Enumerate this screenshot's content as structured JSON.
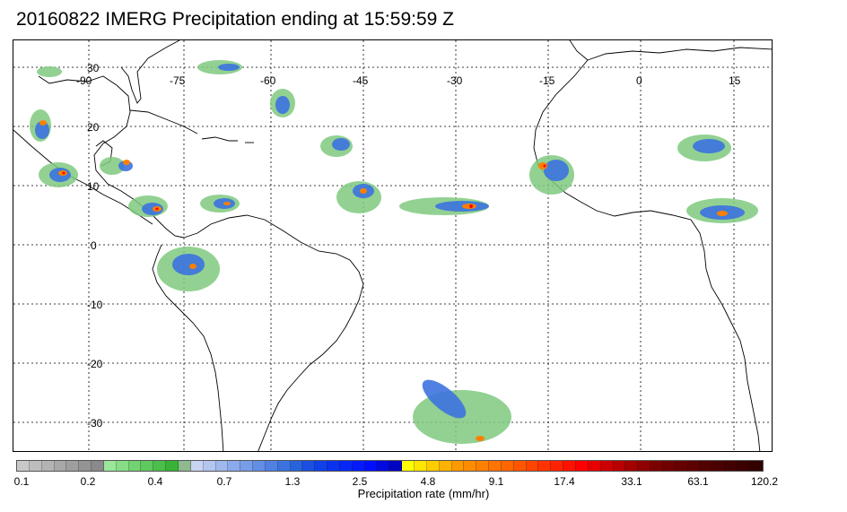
{
  "title": "20160822 IMERG Precipitation ending at 15:59:59 Z",
  "map": {
    "longitude_labels": [
      "-90",
      "-75",
      "-60",
      "-45",
      "-30",
      "-15",
      "0",
      "15"
    ],
    "latitude_labels": [
      "30",
      "20",
      "10",
      "0",
      "-10",
      "-20",
      "-30"
    ],
    "grid": true,
    "colors": {
      "land_outline": "#000000",
      "gridline": "#000000",
      "background": "#ffffff"
    }
  },
  "legend": {
    "title": "Precipitation rate (mm/hr)",
    "tick_labels": [
      "0.1",
      "0.2",
      "0.4",
      "0.7",
      "1.3",
      "2.5",
      "4.8",
      "9.1",
      "17.4",
      "33.1",
      "63.1",
      "120.2"
    ],
    "colors": [
      "#c8c8c8",
      "#bdbdbd",
      "#b3b3b3",
      "#a8a8a8",
      "#9e9e9e",
      "#949494",
      "#8a8a8a",
      "#9ae69a",
      "#86dd86",
      "#72d372",
      "#5ec95e",
      "#4abf4a",
      "#38b338",
      "#8fb98f",
      "#c7d4f2",
      "#b3c6f0",
      "#9fb8ee",
      "#8baaeb",
      "#779ce8",
      "#638ee5",
      "#4f80e2",
      "#3b72df",
      "#2764dc",
      "#1a4fe0",
      "#1040e8",
      "#0a33f0",
      "#0627f5",
      "#031bfa",
      "#000fff",
      "#000ae0",
      "#0005c0",
      "#ffff00",
      "#ffe600",
      "#ffcc00",
      "#ffb300",
      "#ff9900",
      "#ff8c00",
      "#ff8000",
      "#ff7300",
      "#ff6600",
      "#ff5500",
      "#ff4400",
      "#ff3300",
      "#ff2200",
      "#ff1100",
      "#ff0000",
      "#e60000",
      "#cc0000",
      "#b80000",
      "#a30000",
      "#8f0000",
      "#7a0000",
      "#700000",
      "#660000",
      "#5c0000",
      "#520000",
      "#4a0000",
      "#420000",
      "#3a0000",
      "#330000"
    ]
  }
}
